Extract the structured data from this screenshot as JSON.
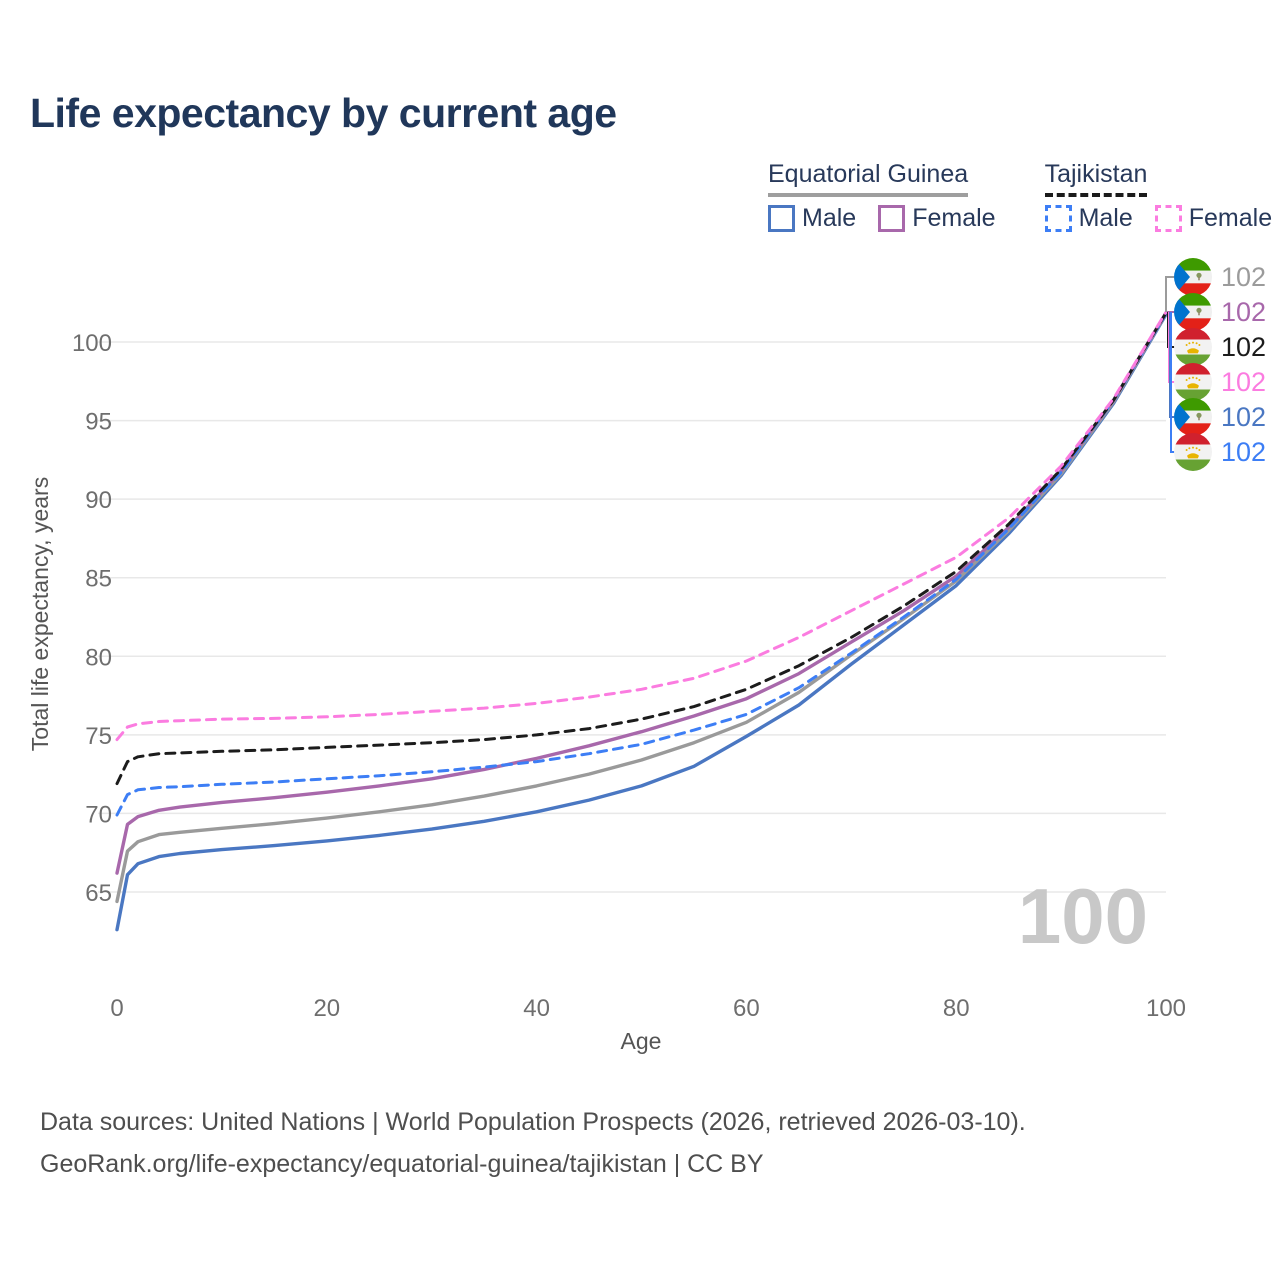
{
  "title": "Life expectancy by current age",
  "watermark": "100",
  "legend": {
    "groups": [
      {
        "label": "Equatorial Guinea",
        "line_style": "solid",
        "underline_color": "#9e9e9e",
        "items": [
          {
            "label": "Male",
            "color": "#4a77c2",
            "dashed": false
          },
          {
            "label": "Female",
            "color": "#a868ab",
            "dashed": false
          }
        ]
      },
      {
        "label": "Tajikistan",
        "line_style": "dashed",
        "underline_color": "#1b1b1b",
        "items": [
          {
            "label": "Male",
            "color": "#3d7ef5",
            "dashed": true
          },
          {
            "label": "Female",
            "color": "#fb7ce0",
            "dashed": true
          }
        ]
      }
    ]
  },
  "right_labels": [
    {
      "flag": "equatorial-guinea",
      "value": "102",
      "color": "#9b9b9b",
      "series_id": "eg-all"
    },
    {
      "flag": "equatorial-guinea",
      "value": "102",
      "color": "#a868ab",
      "series_id": "eg-female"
    },
    {
      "flag": "tajikistan",
      "value": "102",
      "color": "#1c1c1c",
      "series_id": "tj-all"
    },
    {
      "flag": "tajikistan",
      "value": "102",
      "color": "#fb7ce0",
      "series_id": "tj-female"
    },
    {
      "flag": "equatorial-guinea",
      "value": "102",
      "color": "#4a77c2",
      "series_id": "eg-male"
    },
    {
      "flag": "tajikistan",
      "value": "102",
      "color": "#3d7ef5",
      "series_id": "tj-male"
    }
  ],
  "chart_data": {
    "type": "line",
    "title": "Life expectancy by current age",
    "xlabel": "Age",
    "ylabel": "Total life expectancy, years",
    "xlim": [
      0,
      100
    ],
    "ylim": [
      62,
      103
    ],
    "xticks": [
      0,
      20,
      40,
      60,
      80,
      100
    ],
    "yticks": [
      65,
      70,
      75,
      80,
      85,
      90,
      95,
      100
    ],
    "grid": "horizontal",
    "legend_position": "top-right",
    "end_value_label": "102",
    "x": [
      0,
      1,
      2,
      4,
      6,
      10,
      15,
      20,
      25,
      30,
      35,
      40,
      45,
      50,
      55,
      60,
      65,
      70,
      75,
      80,
      85,
      90,
      95,
      100
    ],
    "series": [
      {
        "id": "eg-male",
        "name": "Equatorial Guinea Male",
        "country": "Equatorial Guinea",
        "sex": "Male",
        "color": "#4a77c2",
        "dash": false,
        "values": [
          62.6,
          66.1,
          66.8,
          67.25,
          67.45,
          67.7,
          67.95,
          68.25,
          68.6,
          69.0,
          69.5,
          70.1,
          70.85,
          71.75,
          73.0,
          74.9,
          76.9,
          79.5,
          82.0,
          84.5,
          87.8,
          91.5,
          96.1,
          101.75
        ]
      },
      {
        "id": "eg-all",
        "name": "Equatorial Guinea All",
        "country": "Equatorial Guinea",
        "sex": "All",
        "color": "#9a9a9a",
        "dash": false,
        "values": [
          64.4,
          67.6,
          68.2,
          68.65,
          68.8,
          69.05,
          69.35,
          69.7,
          70.1,
          70.55,
          71.1,
          71.75,
          72.5,
          73.4,
          74.5,
          75.8,
          77.7,
          80.1,
          82.4,
          84.8,
          88.0,
          91.6,
          96.2,
          101.8
        ]
      },
      {
        "id": "eg-female",
        "name": "Equatorial Guinea Female",
        "country": "Equatorial Guinea",
        "sex": "Female",
        "color": "#a868ab",
        "dash": false,
        "values": [
          66.2,
          69.3,
          69.8,
          70.2,
          70.4,
          70.7,
          71.0,
          71.35,
          71.75,
          72.2,
          72.8,
          73.5,
          74.3,
          75.2,
          76.2,
          77.3,
          78.9,
          80.9,
          82.9,
          85.1,
          88.2,
          91.8,
          96.3,
          101.85
        ]
      },
      {
        "id": "tj-male",
        "name": "Tajikistan Male",
        "country": "Tajikistan",
        "sex": "Male",
        "color": "#3d7ef5",
        "dash": true,
        "values": [
          69.9,
          71.2,
          71.5,
          71.65,
          71.7,
          71.85,
          72.0,
          72.2,
          72.4,
          72.65,
          72.95,
          73.3,
          73.8,
          74.4,
          75.3,
          76.3,
          78.0,
          80.2,
          82.5,
          84.9,
          88.1,
          91.7,
          96.3,
          101.8
        ]
      },
      {
        "id": "tj-all",
        "name": "Tajikistan All",
        "country": "Tajikistan",
        "sex": "All",
        "color": "#1c1c1c",
        "dash": true,
        "values": [
          71.9,
          73.3,
          73.6,
          73.8,
          73.85,
          73.95,
          74.05,
          74.2,
          74.35,
          74.5,
          74.7,
          75.0,
          75.4,
          76.0,
          76.8,
          77.9,
          79.4,
          81.2,
          83.2,
          85.4,
          88.4,
          91.9,
          96.3,
          101.85
        ]
      },
      {
        "id": "tj-female",
        "name": "Tajikistan Female",
        "country": "Tajikistan",
        "sex": "Female",
        "color": "#fb7ce0",
        "dash": true,
        "values": [
          74.7,
          75.5,
          75.7,
          75.85,
          75.9,
          76.0,
          76.05,
          76.15,
          76.3,
          76.5,
          76.7,
          77.0,
          77.4,
          77.9,
          78.6,
          79.7,
          81.2,
          82.9,
          84.6,
          86.3,
          88.8,
          92.1,
          96.4,
          101.9
        ]
      }
    ]
  },
  "footer": {
    "line1": "Data sources: United Nations | World Population Prospects (2026, retrieved 2026-03-10).",
    "line2": "GeoRank.org/life-expectancy/equatorial-guinea/tajikistan | CC BY"
  }
}
